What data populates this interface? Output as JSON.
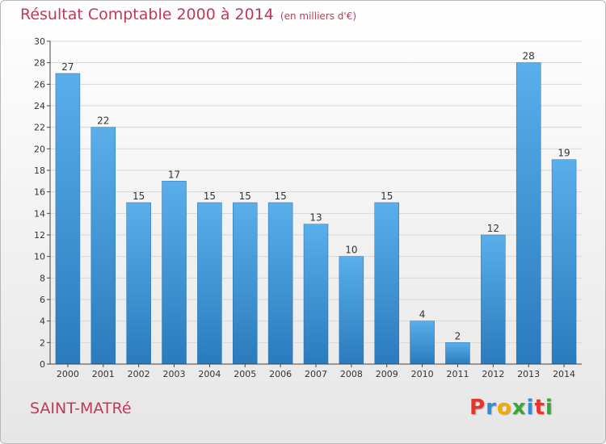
{
  "page": {
    "title": "Résultat Comptable 2000 à 2014",
    "title_unit": "(en milliers d'€)",
    "commune": "SAINT-MATRé",
    "logo": {
      "text": "Proxiti",
      "letters": [
        {
          "ch": "P",
          "color": "#e8342b"
        },
        {
          "ch": "r",
          "color": "#2f8ed8"
        },
        {
          "ch": "o",
          "color": "#f2a900"
        },
        {
          "ch": "x",
          "color": "#3aa63a"
        },
        {
          "ch": "i",
          "color": "#2f8ed8"
        },
        {
          "ch": "t",
          "color": "#e8342b"
        },
        {
          "ch": "i",
          "color": "#3aa63a"
        }
      ]
    }
  },
  "colors": {
    "accent": "#c03a57",
    "bar_top": "#5aaeea",
    "bar_bottom": "#2a7bbd",
    "grid": "#d7d7d7",
    "axis": "#444444"
  },
  "chart_data": {
    "type": "bar",
    "categories": [
      "2000",
      "2001",
      "2002",
      "2003",
      "2004",
      "2005",
      "2006",
      "2007",
      "2008",
      "2009",
      "2010",
      "2011",
      "2012",
      "2013",
      "2014"
    ],
    "values": [
      27,
      22,
      15,
      17,
      15,
      15,
      15,
      13,
      10,
      15,
      4,
      2,
      12,
      28,
      19
    ],
    "ylim": [
      0,
      30
    ],
    "yticks": [
      "0",
      "2",
      "4",
      "6",
      "8",
      "10",
      "12",
      "14",
      "16",
      "18",
      "20",
      "22",
      "24",
      "26",
      "28",
      "30"
    ],
    "grid": true,
    "data_labels": true
  }
}
